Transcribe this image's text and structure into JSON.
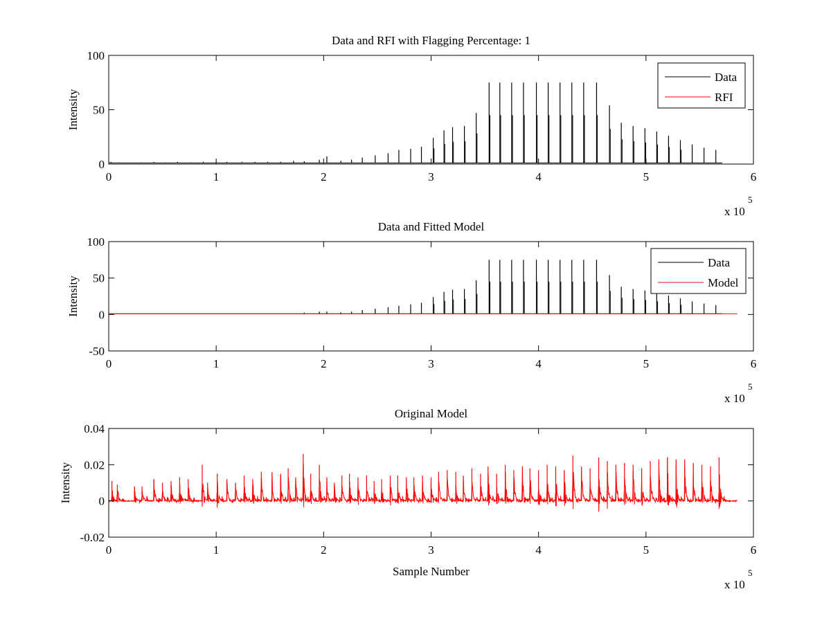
{
  "chart_data": [
    {
      "type": "line",
      "title": "Data and RFI with Flagging Percentage: 1",
      "xlabel": "",
      "ylabel": "Intensity",
      "xlim": [
        0,
        600000
      ],
      "ylim": [
        0,
        100
      ],
      "xticks": [
        0,
        100000,
        200000,
        300000,
        400000,
        500000,
        600000
      ],
      "xtick_labels": [
        "0",
        "1",
        "2",
        "3",
        "4",
        "5",
        "6"
      ],
      "yticks": [
        0,
        50,
        100
      ],
      "ytick_labels": [
        "0",
        "50",
        "100"
      ],
      "x_multiplier": {
        "base": "x 10",
        "exponent": "5"
      },
      "legend": {
        "placement": "top-right",
        "entries": [
          "Data",
          "RFI"
        ]
      },
      "series": [
        {
          "name": "Data",
          "color": "#000000",
          "style": "spikes",
          "baseline": 1,
          "x": [
            2000,
            10000,
            30000,
            42000,
            52000,
            64000,
            76000,
            88000,
            100000,
            110000,
            124000,
            136000,
            148000,
            160000,
            172000,
            182000,
            196000,
            203000,
            216000,
            226000,
            236000,
            248000,
            260000,
            270000,
            281000,
            291000,
            302000,
            312000,
            320000,
            331000,
            342000,
            354000,
            364000,
            375000,
            386000,
            398000,
            409000,
            420000,
            431000,
            442000,
            454000,
            466000,
            477000,
            488000,
            499000,
            510000,
            521000,
            532000,
            543000,
            554000,
            565000
          ],
          "y": [
            2,
            1.5,
            1.5,
            2,
            1.5,
            2,
            1.5,
            2,
            2,
            2,
            2,
            2,
            2,
            2,
            3,
            2.5,
            4,
            7,
            3,
            4,
            6,
            8,
            10,
            13,
            14,
            16,
            24,
            31,
            34,
            35,
            47,
            75,
            75,
            75,
            75,
            75,
            75,
            75,
            75,
            75,
            75,
            54,
            38,
            35,
            33,
            30,
            26,
            22,
            18,
            15,
            13
          ]
        },
        {
          "name": "RFI",
          "color": "#ff0000",
          "style": "line",
          "x": [
            0,
            580000
          ],
          "y": [
            0,
            0
          ]
        }
      ]
    },
    {
      "type": "line",
      "title": "Data and Fitted Model",
      "xlabel": "",
      "ylabel": "Intensity",
      "xlim": [
        0,
        600000
      ],
      "ylim": [
        -50,
        100
      ],
      "xticks": [
        0,
        100000,
        200000,
        300000,
        400000,
        500000,
        600000
      ],
      "xtick_labels": [
        "0",
        "1",
        "2",
        "3",
        "4",
        "5",
        "6"
      ],
      "yticks": [
        -50,
        0,
        50,
        100
      ],
      "ytick_labels": [
        "-50",
        "0",
        "50",
        "100"
      ],
      "x_multiplier": {
        "base": "x 10",
        "exponent": "5"
      },
      "legend": {
        "placement": "top-right",
        "entries": [
          "Data",
          "Model"
        ]
      },
      "series": [
        {
          "name": "Data",
          "color": "#000000",
          "style": "spikes",
          "baseline": 1,
          "x": [
            182000,
            196000,
            203000,
            216000,
            226000,
            236000,
            248000,
            260000,
            270000,
            281000,
            291000,
            302000,
            312000,
            320000,
            331000,
            342000,
            354000,
            364000,
            375000,
            386000,
            398000,
            409000,
            420000,
            431000,
            442000,
            454000,
            466000,
            477000,
            488000,
            499000,
            510000,
            521000,
            532000,
            543000,
            554000,
            565000
          ],
          "y": [
            2.5,
            4,
            4,
            3,
            4,
            6,
            8,
            10,
            12,
            14,
            16,
            24,
            31,
            34,
            35,
            47,
            75,
            75,
            75,
            75,
            75,
            75,
            75,
            75,
            75,
            75,
            54,
            38,
            35,
            33,
            30,
            26,
            22,
            18,
            15,
            13
          ]
        },
        {
          "name": "Model",
          "color": "#ff0000",
          "style": "line",
          "x": [
            0,
            585000
          ],
          "y": [
            1,
            1
          ]
        }
      ]
    },
    {
      "type": "line",
      "title": "Original Model",
      "xlabel": "Sample Number",
      "ylabel": "Intensity",
      "xlim": [
        0,
        600000
      ],
      "ylim": [
        -0.02,
        0.04
      ],
      "xticks": [
        0,
        100000,
        200000,
        300000,
        400000,
        500000,
        600000
      ],
      "xtick_labels": [
        "0",
        "1",
        "2",
        "3",
        "4",
        "5",
        "6"
      ],
      "yticks": [
        -0.02,
        0,
        0.02,
        0.04
      ],
      "ytick_labels": [
        "-0.02",
        "0",
        "0.02",
        "0.04"
      ],
      "x_multiplier": {
        "base": "x 10",
        "exponent": "5"
      },
      "series": [
        {
          "color": "#ff0000",
          "style": "noise-bursts",
          "x": [
            3000,
            8000,
            24000,
            31000,
            42000,
            50000,
            58000,
            66000,
            74000,
            87000,
            92000,
            101000,
            110000,
            118000,
            126000,
            134000,
            142000,
            152000,
            160000,
            167000,
            174000,
            181000,
            188000,
            196000,
            203000,
            210000,
            217000,
            224000,
            232000,
            240000,
            247000,
            254000,
            262000,
            269000,
            277000,
            284000,
            292000,
            300000,
            307000,
            315000,
            323000,
            330000,
            338000,
            346000,
            353000,
            361000,
            369000,
            377000,
            385000,
            392000,
            400000,
            408000,
            416000,
            424000,
            432000,
            440000,
            448000,
            456000,
            464000,
            472000,
            480000,
            488000,
            496000,
            504000,
            512000,
            520000,
            528000,
            536000,
            544000,
            552000,
            560000,
            568000
          ],
          "y": [
            0.011,
            0.009,
            0.008,
            0.008,
            0.012,
            0.01,
            0.011,
            0.013,
            0.012,
            0.02,
            0.01,
            0.015,
            0.012,
            0.01,
            0.014,
            0.012,
            0.016,
            0.016,
            0.015,
            0.018,
            0.013,
            0.026,
            0.015,
            0.02,
            0.013,
            0.01,
            0.014,
            0.015,
            0.013,
            0.014,
            0.011,
            0.012,
            0.014,
            0.014,
            0.013,
            0.013,
            0.014,
            0.013,
            0.016,
            0.017,
            0.016,
            0.014,
            0.018,
            0.015,
            0.019,
            0.015,
            0.02,
            0.017,
            0.019,
            0.018,
            0.017,
            0.02,
            0.019,
            0.017,
            0.025,
            0.019,
            0.018,
            0.024,
            0.022,
            0.02,
            0.021,
            0.02,
            0.018,
            0.022,
            0.023,
            0.024,
            0.023,
            0.023,
            0.021,
            0.02,
            0.019,
            0.024
          ]
        }
      ]
    }
  ]
}
